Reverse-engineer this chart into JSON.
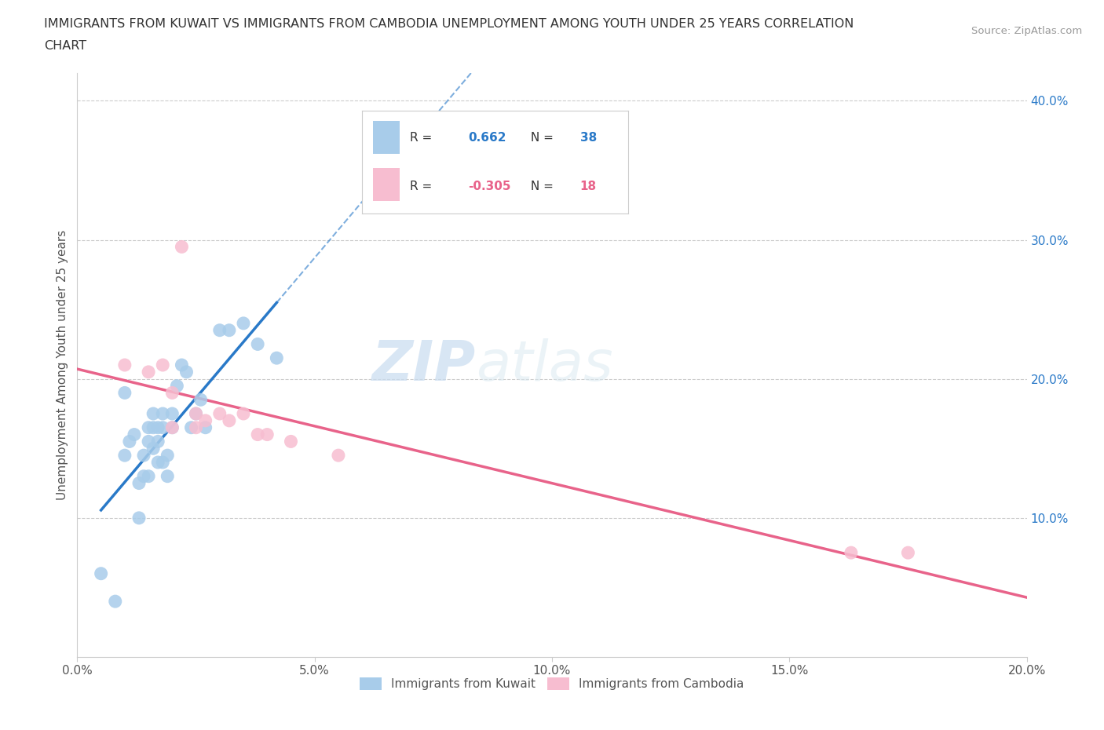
{
  "title_line1": "IMMIGRANTS FROM KUWAIT VS IMMIGRANTS FROM CAMBODIA UNEMPLOYMENT AMONG YOUTH UNDER 25 YEARS CORRELATION",
  "title_line2": "CHART",
  "source": "Source: ZipAtlas.com",
  "ylabel": "Unemployment Among Youth under 25 years",
  "legend_kuwait": "Immigrants from Kuwait",
  "legend_cambodia": "Immigrants from Cambodia",
  "R_kuwait": 0.662,
  "N_kuwait": 38,
  "R_cambodia": -0.305,
  "N_cambodia": 18,
  "xlim": [
    0.0,
    0.2
  ],
  "ylim": [
    0.0,
    0.42
  ],
  "x_ticks": [
    0.0,
    0.05,
    0.1,
    0.15,
    0.2
  ],
  "x_tick_labels": [
    "0.0%",
    "5.0%",
    "10.0%",
    "15.0%",
    "20.0%"
  ],
  "y_ticks_right": [
    0.1,
    0.2,
    0.3,
    0.4
  ],
  "y_tick_labels_right": [
    "10.0%",
    "20.0%",
    "30.0%",
    "40.0%"
  ],
  "watermark_zip": "ZIP",
  "watermark_atlas": "atlas",
  "color_kuwait": "#A8CCEA",
  "color_cambodia": "#F7BDD0",
  "line_color_kuwait": "#2979C8",
  "line_color_cambodia": "#E8638A",
  "background_color": "#FFFFFF",
  "kuwait_x": [
    0.005,
    0.008,
    0.01,
    0.01,
    0.011,
    0.012,
    0.013,
    0.013,
    0.014,
    0.014,
    0.015,
    0.015,
    0.015,
    0.016,
    0.016,
    0.016,
    0.017,
    0.017,
    0.017,
    0.018,
    0.018,
    0.018,
    0.019,
    0.019,
    0.02,
    0.02,
    0.021,
    0.022,
    0.023,
    0.024,
    0.025,
    0.026,
    0.027,
    0.03,
    0.032,
    0.035,
    0.038,
    0.042
  ],
  "kuwait_y": [
    0.06,
    0.04,
    0.145,
    0.19,
    0.155,
    0.16,
    0.125,
    0.1,
    0.145,
    0.13,
    0.165,
    0.155,
    0.13,
    0.175,
    0.165,
    0.15,
    0.165,
    0.155,
    0.14,
    0.175,
    0.165,
    0.14,
    0.145,
    0.13,
    0.175,
    0.165,
    0.195,
    0.21,
    0.205,
    0.165,
    0.175,
    0.185,
    0.165,
    0.235,
    0.235,
    0.24,
    0.225,
    0.215
  ],
  "cambodia_x": [
    0.01,
    0.015,
    0.018,
    0.02,
    0.02,
    0.022,
    0.025,
    0.025,
    0.027,
    0.03,
    0.032,
    0.035,
    0.038,
    0.04,
    0.045,
    0.055,
    0.163,
    0.175
  ],
  "cambodia_y": [
    0.21,
    0.205,
    0.21,
    0.19,
    0.165,
    0.295,
    0.165,
    0.175,
    0.17,
    0.175,
    0.17,
    0.175,
    0.16,
    0.16,
    0.155,
    0.145,
    0.075,
    0.075
  ]
}
